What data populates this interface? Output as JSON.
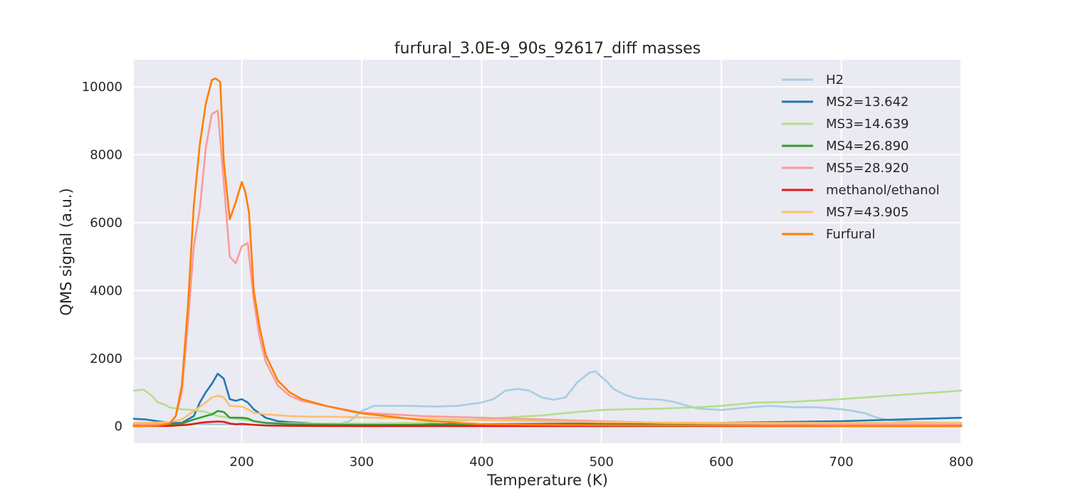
{
  "chart_data": {
    "type": "line",
    "title": "furfural_3.0E-9_90s_92617_diff masses",
    "xlabel": "Temperature (K)",
    "ylabel": "QMS signal (a.u.)",
    "xlim": [
      110,
      800
    ],
    "ylim": [
      -500,
      10800
    ],
    "xticks": [
      200,
      300,
      400,
      500,
      600,
      700,
      800
    ],
    "yticks": [
      0,
      2000,
      4000,
      6000,
      8000,
      10000
    ],
    "grid": true,
    "legend_position": "top-right",
    "background_color": "#eaeaf2",
    "series": [
      {
        "name": "H2",
        "color": "#a6cee3",
        "x": [
          110,
          140,
          160,
          200,
          240,
          280,
          290,
          300,
          310,
          320,
          340,
          360,
          380,
          400,
          410,
          420,
          430,
          440,
          450,
          460,
          470,
          480,
          490,
          495,
          500,
          505,
          510,
          520,
          530,
          540,
          550,
          560,
          570,
          580,
          600,
          620,
          640,
          660,
          680,
          700,
          710,
          720,
          730,
          740,
          760,
          800
        ],
        "y": [
          80,
          70,
          60,
          50,
          40,
          60,
          150,
          450,
          600,
          600,
          600,
          580,
          600,
          700,
          800,
          1050,
          1100,
          1050,
          850,
          780,
          850,
          1300,
          1580,
          1620,
          1450,
          1300,
          1100,
          920,
          820,
          800,
          780,
          720,
          620,
          520,
          480,
          550,
          600,
          560,
          560,
          500,
          450,
          380,
          250,
          180,
          120,
          100
        ]
      },
      {
        "name": "MS2=13.642",
        "color": "#1f78b4",
        "x": [
          110,
          120,
          130,
          140,
          150,
          160,
          165,
          170,
          175,
          180,
          185,
          190,
          195,
          200,
          205,
          210,
          220,
          230,
          240,
          260,
          280,
          300,
          400,
          500,
          600,
          700,
          800
        ],
        "y": [
          220,
          200,
          150,
          100,
          100,
          300,
          700,
          1000,
          1250,
          1550,
          1400,
          800,
          750,
          800,
          700,
          500,
          250,
          150,
          120,
          80,
          70,
          60,
          60,
          80,
          100,
          150,
          250
        ]
      },
      {
        "name": "MS3=14.639",
        "color": "#b2df8a",
        "x": [
          110,
          118,
          125,
          130,
          135,
          140,
          150,
          160,
          170,
          180,
          190,
          200,
          210,
          220,
          250,
          300,
          350,
          400,
          430,
          450,
          480,
          500,
          520,
          550,
          580,
          600,
          630,
          660,
          700,
          720,
          760,
          780,
          800
        ],
        "y": [
          1050,
          1080,
          900,
          700,
          650,
          550,
          500,
          480,
          420,
          300,
          250,
          200,
          150,
          100,
          80,
          80,
          100,
          200,
          280,
          320,
          420,
          480,
          500,
          520,
          560,
          600,
          700,
          720,
          800,
          850,
          950,
          1000,
          1050
        ]
      },
      {
        "name": "MS4=26.890",
        "color": "#33a02c",
        "x": [
          110,
          140,
          150,
          160,
          170,
          175,
          180,
          185,
          190,
          200,
          205,
          210,
          220,
          240,
          300,
          400,
          500,
          600,
          700,
          800
        ],
        "y": [
          30,
          40,
          80,
          200,
          300,
          350,
          450,
          420,
          250,
          250,
          230,
          150,
          100,
          60,
          40,
          40,
          40,
          40,
          40,
          40
        ]
      },
      {
        "name": "MS5=28.920",
        "color": "#fb9a99",
        "x": [
          110,
          130,
          140,
          145,
          150,
          155,
          160,
          165,
          170,
          175,
          180,
          185,
          190,
          195,
          200,
          205,
          210,
          215,
          220,
          230,
          240,
          250,
          270,
          300,
          350,
          400,
          450,
          500,
          550,
          600,
          700,
          800
        ],
        "y": [
          60,
          60,
          100,
          300,
          1000,
          3000,
          5300,
          6400,
          8200,
          9200,
          9300,
          7200,
          5000,
          4800,
          5300,
          5400,
          3700,
          2600,
          1900,
          1200,
          900,
          750,
          600,
          400,
          300,
          250,
          200,
          150,
          100,
          80,
          60,
          50
        ]
      },
      {
        "name": "methanol/ethanol",
        "color": "#e31a1c",
        "x": [
          110,
          140,
          155,
          165,
          170,
          175,
          180,
          185,
          190,
          195,
          200,
          210,
          220,
          250,
          300,
          400,
          500,
          600,
          700,
          800
        ],
        "y": [
          5,
          10,
          40,
          100,
          120,
          130,
          140,
          130,
          80,
          60,
          70,
          40,
          20,
          10,
          5,
          5,
          5,
          5,
          5,
          5
        ]
      },
      {
        "name": "MS7=43.905",
        "color": "#fdbf6f",
        "x": [
          110,
          140,
          150,
          160,
          170,
          175,
          180,
          185,
          190,
          200,
          205,
          210,
          220,
          240,
          260,
          280,
          300,
          350,
          400,
          450,
          500,
          600,
          700,
          800
        ],
        "y": [
          100,
          120,
          200,
          450,
          700,
          850,
          900,
          850,
          600,
          580,
          500,
          400,
          350,
          300,
          280,
          280,
          260,
          220,
          180,
          150,
          120,
          100,
          100,
          100
        ]
      },
      {
        "name": "Furfural",
        "color": "#ff7f00",
        "x": [
          110,
          130,
          140,
          145,
          150,
          155,
          160,
          165,
          170,
          175,
          178,
          182,
          185,
          190,
          195,
          200,
          203,
          206,
          210,
          215,
          220,
          230,
          240,
          250,
          270,
          290,
          300,
          320,
          350,
          380,
          400,
          450,
          500,
          600,
          700,
          800
        ],
        "y": [
          0,
          20,
          80,
          300,
          1200,
          3500,
          6500,
          8300,
          9500,
          10200,
          10250,
          10150,
          7800,
          6100,
          6600,
          7200,
          6900,
          6300,
          4000,
          2900,
          2100,
          1350,
          1000,
          800,
          600,
          450,
          380,
          300,
          180,
          100,
          60,
          40,
          30,
          20,
          10,
          5
        ]
      }
    ]
  }
}
